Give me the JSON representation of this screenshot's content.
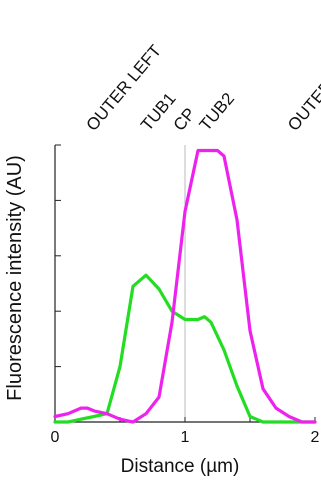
{
  "chart_data": {
    "type": "line",
    "title": "",
    "xlabel": "Distance (µm)",
    "ylabel": "Fluorescence intensity (AU)",
    "xlim": [
      0,
      2
    ],
    "ylim": [
      0,
      1
    ],
    "xticks": [
      0,
      1,
      2
    ],
    "x_tick_labels": [
      "0",
      "1",
      "2"
    ],
    "y_tick_labels": [],
    "grid": false,
    "legend": "none",
    "annotations": [
      "OUTER LEFT",
      "TUB1",
      "CP",
      "TUB2",
      "OUTER R"
    ],
    "annotation_positions": [
      0.3,
      0.72,
      0.97,
      1.17,
      1.85
    ],
    "series": [
      {
        "color": "#22dd22",
        "x": [
          0,
          0.1,
          0.2,
          0.3,
          0.4,
          0.5,
          0.6,
          0.7,
          0.8,
          0.9,
          1.0,
          1.1,
          1.15,
          1.2,
          1.3,
          1.4,
          1.5,
          1.6,
          1.7,
          1.8,
          1.9,
          2.0
        ],
        "values": [
          0.0,
          0.0,
          0.01,
          0.02,
          0.03,
          0.2,
          0.49,
          0.53,
          0.48,
          0.4,
          0.37,
          0.37,
          0.38,
          0.36,
          0.26,
          0.13,
          0.02,
          0.0,
          0.0,
          0.0,
          0.0,
          0.0
        ]
      },
      {
        "color": "#ee22ee",
        "x": [
          0,
          0.1,
          0.2,
          0.25,
          0.3,
          0.4,
          0.5,
          0.6,
          0.7,
          0.8,
          0.9,
          1.0,
          1.05,
          1.1,
          1.2,
          1.25,
          1.3,
          1.4,
          1.5,
          1.6,
          1.7,
          1.8,
          1.9,
          2.0
        ],
        "values": [
          0.02,
          0.03,
          0.05,
          0.05,
          0.04,
          0.03,
          0.01,
          0.0,
          0.03,
          0.09,
          0.36,
          0.76,
          0.87,
          0.98,
          0.98,
          0.98,
          0.96,
          0.73,
          0.33,
          0.12,
          0.05,
          0.02,
          0.0,
          0.0
        ]
      }
    ]
  }
}
